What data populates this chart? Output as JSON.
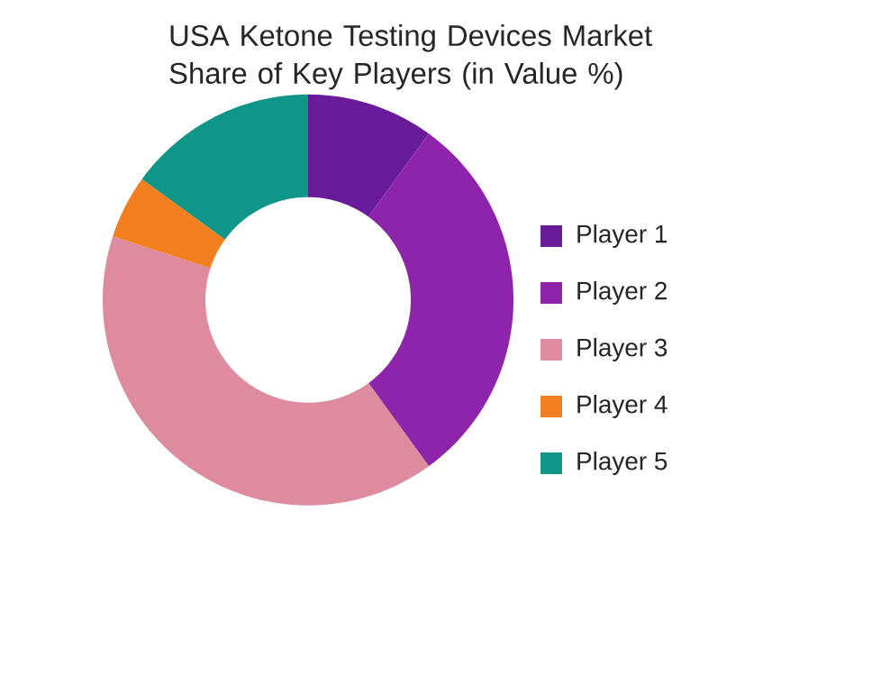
{
  "chart_data": {
    "type": "donut",
    "title": "USA Ketone Testing Devices Market Share of Key Players (in Value %)",
    "categories": [
      "Player 1",
      "Player 2",
      "Player 3",
      "Player 4",
      "Player 5"
    ],
    "values": [
      10,
      30,
      40,
      5,
      15
    ],
    "colors": [
      "#6a1b9a",
      "#8e24aa",
      "#de8a9f",
      "#f47f20",
      "#0f9688"
    ],
    "legend": "right"
  }
}
